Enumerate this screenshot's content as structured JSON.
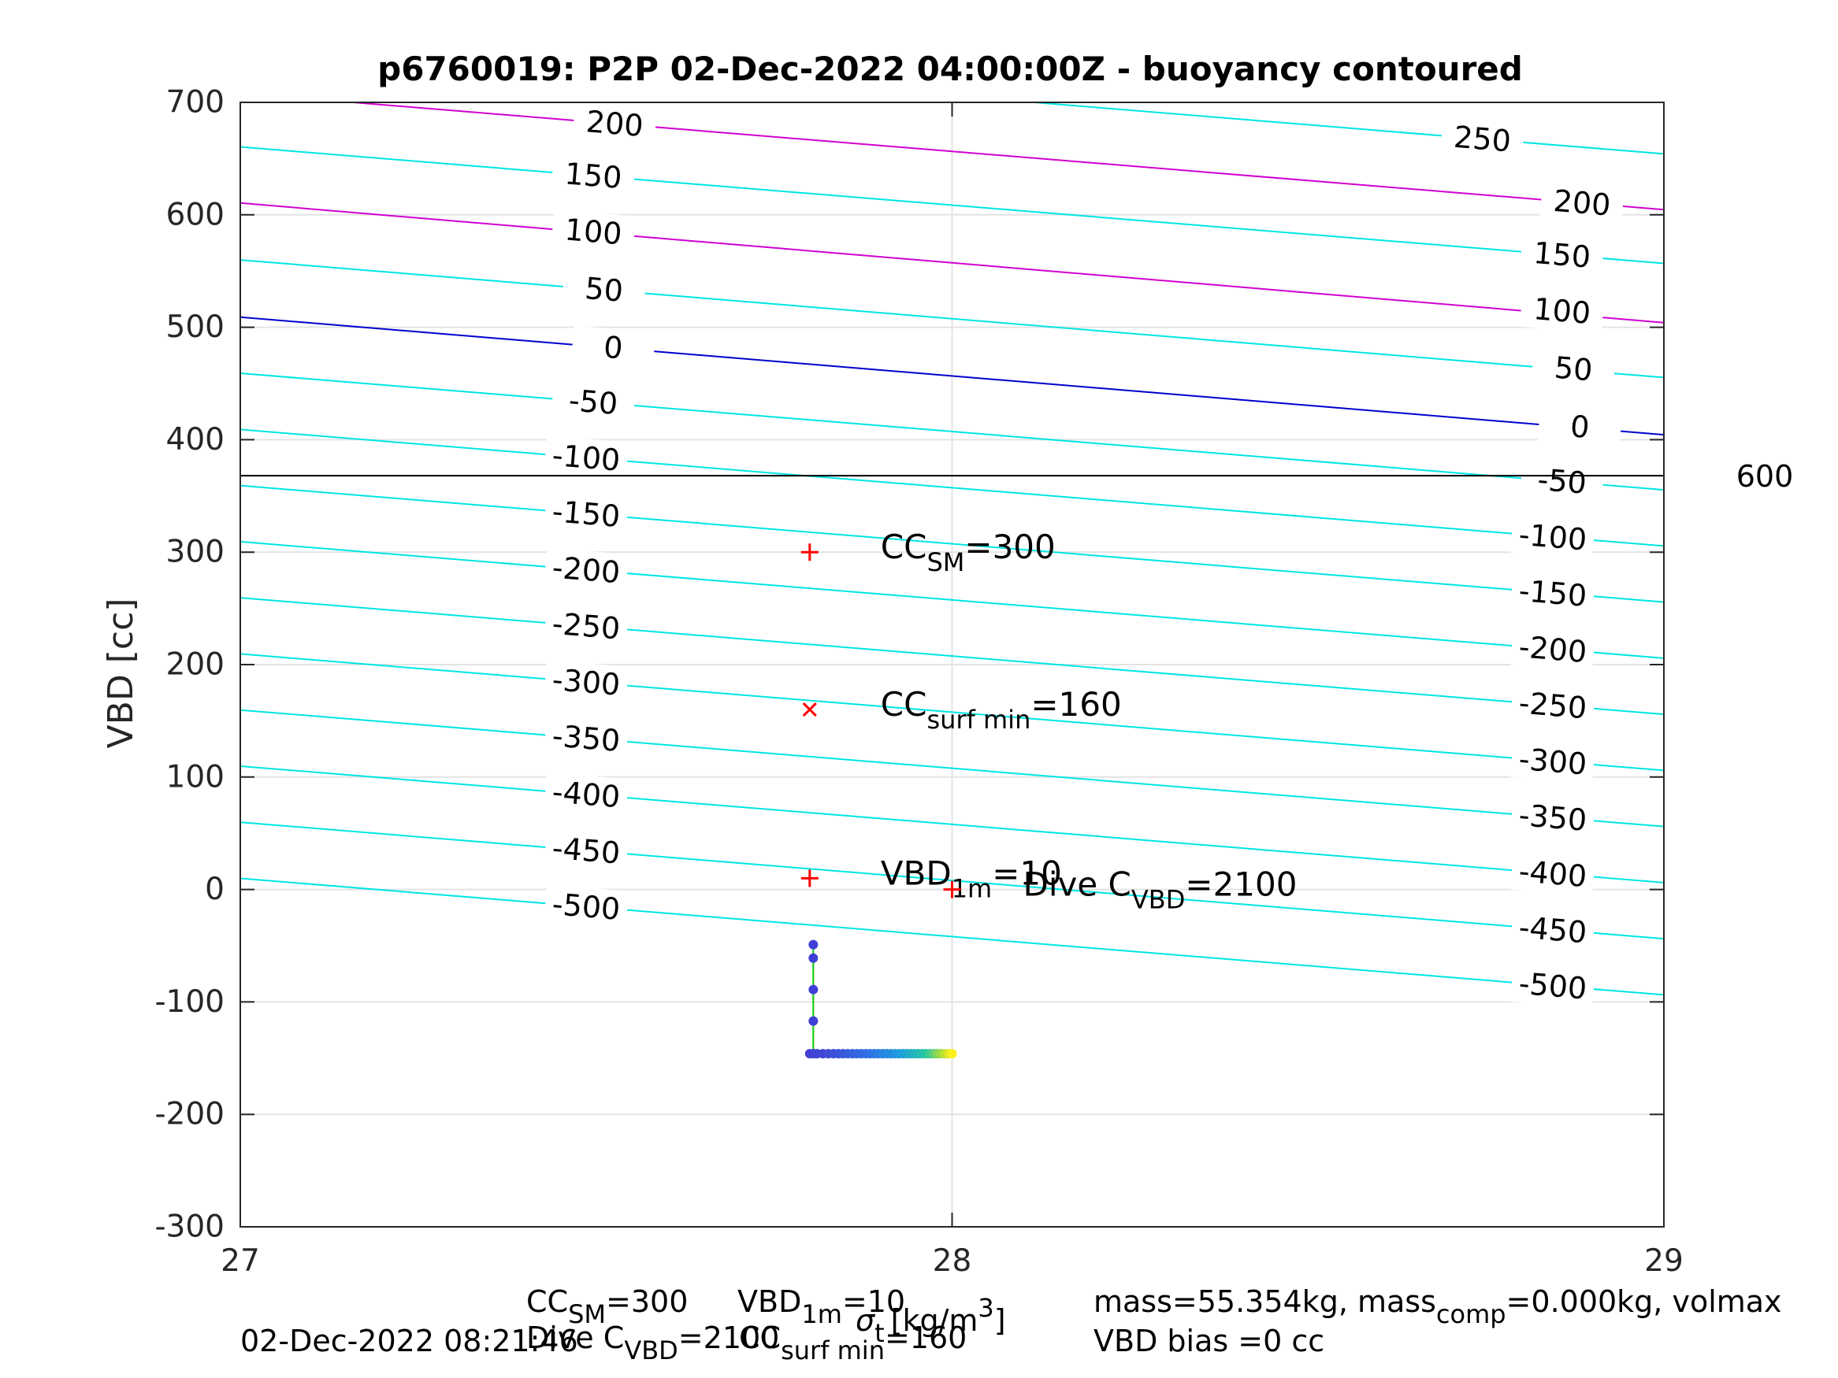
{
  "chart_data": {
    "type": "line",
    "title": "p6760019: P2P 02-Dec-2022 04:00:00Z - buoyancy contoured",
    "ylabel": "VBD [cc]",
    "xlim": [
      27,
      29
    ],
    "ylim": [
      -300,
      700
    ],
    "xticks": [
      "27",
      "28",
      "29"
    ],
    "yticks": [
      "700",
      "600",
      "500",
      "400",
      "300",
      "200",
      "100",
      "0",
      "-100",
      "-200",
      "-300"
    ],
    "grid": true,
    "colors": {
      "contour": "#00e5e5",
      "contour_positive_major": "#d100d1",
      "contour_zero": "#0000cd",
      "reference": "#000000",
      "marker": "#ff0000",
      "trace_line": "#00cc00"
    },
    "contours": [
      {
        "level": "250",
        "x": [
          28.1157,
          29
        ],
        "y": [
          700,
          654.2
        ],
        "color": "contour",
        "labels": [
          {
            "x": 28.745,
            "y": 667.3
          }
        ]
      },
      {
        "level": "200",
        "x": [
          27.1586,
          29
        ],
        "y": [
          700,
          604.6
        ],
        "color": "contour_positive_major",
        "labels": [
          {
            "x": 27.526,
            "y": 681
          },
          {
            "x": 28.885,
            "y": 610.5
          }
        ]
      },
      {
        "level": "150",
        "x": [
          27,
          29
        ],
        "y": [
          660.4,
          556.8
        ],
        "color": "contour",
        "labels": [
          {
            "x": 27.496,
            "y": 634.7
          },
          {
            "x": 28.857,
            "y": 564.2
          }
        ]
      },
      {
        "level": "100",
        "x": [
          27,
          29
        ],
        "y": [
          610.5,
          504.1
        ],
        "color": "contour_positive_major",
        "labels": [
          {
            "x": 27.496,
            "y": 584.9
          },
          {
            "x": 28.857,
            "y": 514.4
          }
        ]
      },
      {
        "level": "50",
        "x": [
          27,
          29
        ],
        "y": [
          559.9,
          455.3
        ],
        "color": "contour",
        "labels": [
          {
            "x": 27.511,
            "y": 533.4
          },
          {
            "x": 28.873,
            "y": 462.9
          }
        ]
      },
      {
        "level": "0",
        "x": [
          27,
          29
        ],
        "y": [
          509.0,
          404.4
        ],
        "color": "contour_zero",
        "labels": [
          {
            "x": 27.524,
            "y": 481.8
          },
          {
            "x": 28.882,
            "y": 411.4
          }
        ]
      },
      {
        "level": "-50",
        "x": [
          27,
          29
        ],
        "y": [
          459.1,
          355.4
        ],
        "color": "contour",
        "labels": [
          {
            "x": 27.496,
            "y": 433.4
          },
          {
            "x": 28.857,
            "y": 362.9
          }
        ]
      },
      {
        "level": "-100",
        "x": [
          27,
          29
        ],
        "y": [
          409.1,
          305.5
        ],
        "color": "contour",
        "labels": [
          {
            "x": 27.486,
            "y": 383.9
          },
          {
            "x": 28.844,
            "y": 313.3
          }
        ]
      },
      {
        "level": "-150",
        "x": [
          27,
          29
        ],
        "y": [
          359.2,
          255.6
        ],
        "color": "contour",
        "labels": [
          {
            "x": 27.486,
            "y": 334.0
          },
          {
            "x": 28.844,
            "y": 263.4
          }
        ]
      },
      {
        "level": "-200",
        "x": [
          27,
          29
        ],
        "y": [
          309.3,
          205.7
        ],
        "color": "contour",
        "labels": [
          {
            "x": 27.486,
            "y": 284.1
          },
          {
            "x": 28.844,
            "y": 213.5
          }
        ]
      },
      {
        "level": "-250",
        "x": [
          27,
          29
        ],
        "y": [
          259.4,
          155.8
        ],
        "color": "contour",
        "labels": [
          {
            "x": 27.486,
            "y": 234.2
          },
          {
            "x": 28.844,
            "y": 163.6
          }
        ]
      },
      {
        "level": "-300",
        "x": [
          27,
          29
        ],
        "y": [
          209.5,
          105.9
        ],
        "color": "contour",
        "labels": [
          {
            "x": 27.486,
            "y": 184.3
          },
          {
            "x": 28.844,
            "y": 113.7
          }
        ]
      },
      {
        "level": "-350",
        "x": [
          27,
          29
        ],
        "y": [
          159.6,
          56.0
        ],
        "color": "contour",
        "labels": [
          {
            "x": 27.486,
            "y": 134.4
          },
          {
            "x": 28.844,
            "y": 63.8
          }
        ]
      },
      {
        "level": "-400",
        "x": [
          27,
          29
        ],
        "y": [
          109.7,
          6.1
        ],
        "color": "contour",
        "labels": [
          {
            "x": 27.486,
            "y": 84.5
          },
          {
            "x": 28.844,
            "y": 13.9
          }
        ]
      },
      {
        "level": "-450",
        "x": [
          27,
          29
        ],
        "y": [
          59.8,
          -43.8
        ],
        "color": "contour",
        "labels": [
          {
            "x": 27.486,
            "y": 34.6
          },
          {
            "x": 28.844,
            "y": -36.0
          }
        ]
      },
      {
        "level": "-500",
        "x": [
          27,
          29
        ],
        "y": [
          9.9,
          -93.7
        ],
        "color": "contour",
        "labels": [
          {
            "x": 27.486,
            "y": -15.3
          },
          {
            "x": 28.844,
            "y": -85.9
          }
        ]
      }
    ],
    "reference_line": {
      "y": 368,
      "label": "600"
    },
    "markers": [
      {
        "x": 27.8,
        "y": 300,
        "symbol": "+",
        "label_main": "CC",
        "label_sub": "SM",
        "label_rest": "=300"
      },
      {
        "x": 27.8,
        "y": 160,
        "symbol": "x",
        "label_main": "CC",
        "label_sub": "surf min",
        "label_rest": "=160"
      },
      {
        "x": 27.8,
        "y": 10,
        "symbol": "+",
        "label_main": "VBD",
        "label_sub": "1m",
        "label_rest": "=10"
      },
      {
        "x": 28.0,
        "y": 0,
        "symbol": "+",
        "label_main": "Dive C",
        "label_sub": "VBD",
        "label_rest": "=2100"
      }
    ],
    "trace_vertical": {
      "x": 27.805,
      "y": [
        -49,
        -61,
        -89,
        -117,
        -146
      ]
    },
    "trace_horizontal": {
      "y": -146,
      "x_start": 27.8,
      "x_end": 28.0,
      "count": 34
    }
  },
  "footer": {
    "xlabel_sigma": "σ",
    "xlabel_sub": "t",
    "xlabel_unit": "[kg/m",
    "xlabel_sup": "3",
    "xlabel_close": "]",
    "line1_cc": "CC",
    "line1_cc_sub": "SM",
    "line1_cc_val": "=300",
    "line1_vbd": "VBD",
    "line1_vbd_sub": "1m",
    "line1_vbd_val": "=10",
    "line2_dive": "Dive C",
    "line2_dive_sub": "VBD",
    "line2_dive_val": "=2100",
    "line2_cc": "CC",
    "line2_cc_sub": "surf min",
    "line2_cc_val": "=160",
    "timestamp": "02-Dec-2022 08:21:46",
    "mass": "mass=55.354kg, mass",
    "mass_sub": "comp",
    "mass_rest": "=0.000kg, volmax",
    "vbd_bias": "VBD bias =0 cc"
  }
}
